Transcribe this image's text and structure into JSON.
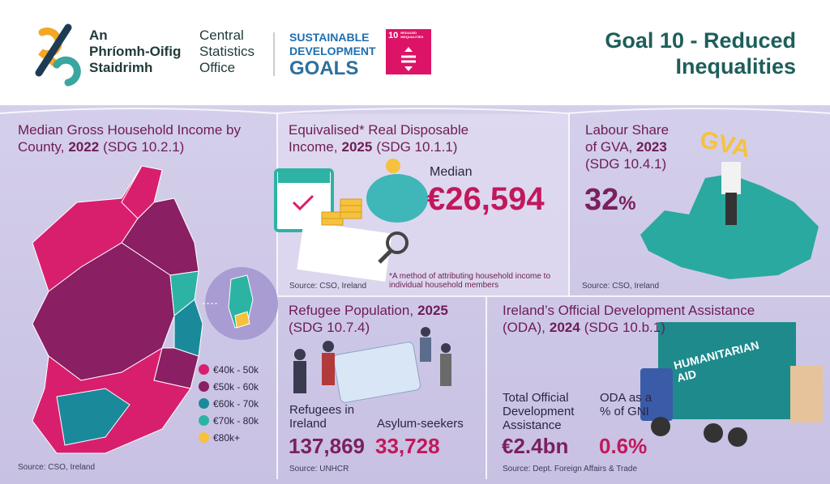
{
  "header": {
    "logo_irish": [
      "An",
      "Phríomh-Oifig",
      "Staidrimh"
    ],
    "logo_english": [
      "Central",
      "Statistics",
      "Office"
    ],
    "sdg_logo": [
      "SUSTAINABLE",
      "DEVELOPMENT",
      "GOALS"
    ],
    "goal_icon": {
      "number": "10",
      "label": "REDUCED INEQUALITIES"
    },
    "title": [
      "Goal 10 - Reduced",
      "Inequalities"
    ]
  },
  "panels": {
    "income_by_county": {
      "title": "Median Gross Household Income by County,",
      "year": "2022",
      "sdg": "(SDG 10.2.1)",
      "legend": [
        {
          "label": "€40k - 50k",
          "color": "#d81f6e"
        },
        {
          "label": "€50k - 60k",
          "color": "#8a1f63"
        },
        {
          "label": "€60k - 70k",
          "color": "#1a8a9b"
        },
        {
          "label": "€70k - 80k",
          "color": "#2db3a3"
        },
        {
          "label": "€80k+",
          "color": "#f6c23e"
        }
      ],
      "source": "Source: CSO, Ireland"
    },
    "disposable_income": {
      "title": "Equivalised* Real Disposable Income,",
      "year": "2025",
      "sdg": "(SDG 10.1.1)",
      "label": "Median",
      "value": "€26,594",
      "footnote": "*A method of attributing household income to individual household members",
      "source": "Source:  CSO, Ireland"
    },
    "labour_share": {
      "title": "Labour Share of GVA,",
      "year": "2023",
      "sdg": "(SDG 10.4.1)",
      "value": "32",
      "unit": "%",
      "illustration_text": "GVA",
      "source": "Source: CSO, Ireland"
    },
    "refugees": {
      "title": "Refugee Population,",
      "year": "2025",
      "sdg": "(SDG 10.7.4)",
      "refugees_label": "Refugees in Ireland",
      "refugees_value": "137,869",
      "asylum_label": "Asylum-seekers",
      "asylum_value": "33,728",
      "source": "Source: UNHCR"
    },
    "oda": {
      "title": "Ireland’s Official Development Assistance (ODA),",
      "year": "2024",
      "sdg": "(SDG 10.b.1)",
      "total_label": "Total Official Development Assistance",
      "total_value": "€2.4bn",
      "gni_label": "ODA as a % of GNI",
      "gni_value": "0.6%",
      "truck_text": "HUMANITARIAN AID",
      "source": "Source: Dept. Foreign Affairs & Trade"
    }
  }
}
